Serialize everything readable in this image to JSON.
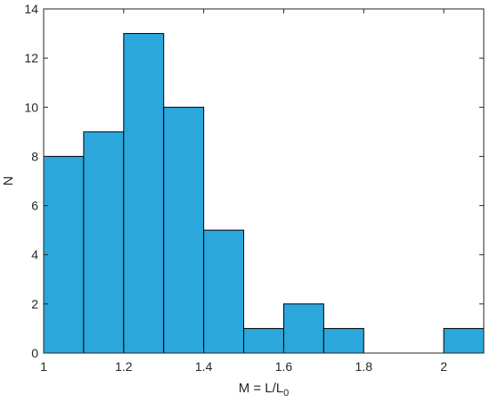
{
  "chart_data": {
    "type": "bar",
    "subtype": "histogram",
    "bin_edges": [
      1.0,
      1.1,
      1.2,
      1.3,
      1.4,
      1.5,
      1.6,
      1.7,
      1.8,
      1.9,
      2.0,
      2.1
    ],
    "values": [
      8,
      9,
      13,
      10,
      5,
      1,
      2,
      1,
      0,
      0,
      1
    ],
    "xlabel": {
      "main": "M = L/L",
      "subscript": "0"
    },
    "ylabel": "N",
    "xlim": [
      1.0,
      2.1
    ],
    "ylim": [
      0,
      14
    ],
    "xticks": [
      1,
      1.2,
      1.4,
      1.6,
      1.8,
      2
    ],
    "xtick_labels": [
      "1",
      "1.2",
      "1.4",
      "1.6",
      "1.8",
      "2"
    ],
    "yticks": [
      0,
      2,
      4,
      6,
      8,
      10,
      12,
      14
    ],
    "ytick_labels": [
      "0",
      "2",
      "4",
      "6",
      "8",
      "10",
      "12",
      "14"
    ],
    "grid": false,
    "bar_color": "#2ba7dc",
    "edge_color": "#000000"
  }
}
